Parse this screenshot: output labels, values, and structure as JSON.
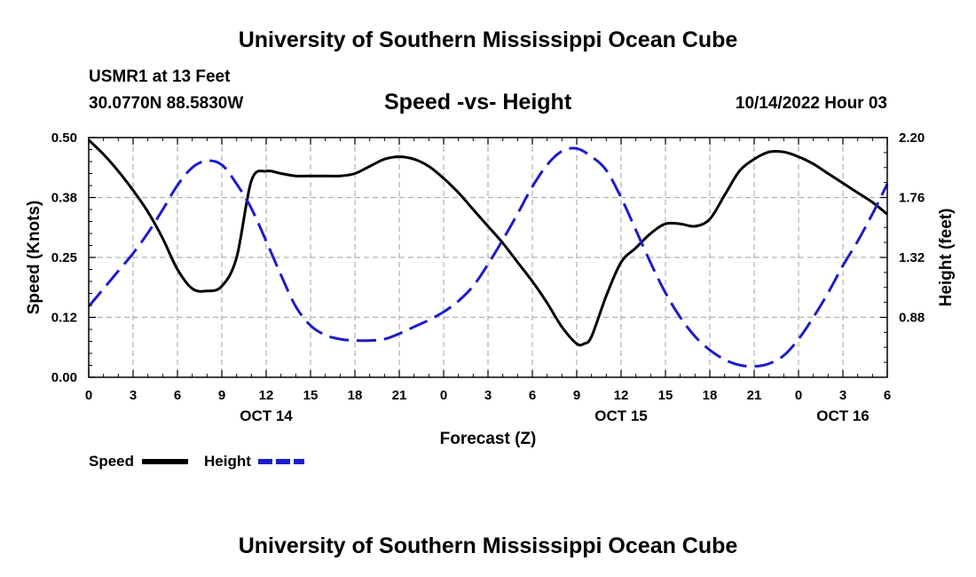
{
  "page": {
    "top_title": "University of Southern Mississippi Ocean Cube",
    "bottom_title": "University of Southern Mississippi Ocean Cube",
    "station": "USMR1 at 13 Feet",
    "coordinates": "30.0770N  88.5830W",
    "datetime": "10/14/2022 Hour 03"
  },
  "chart_data": {
    "type": "line",
    "title": "Speed -vs- Height",
    "xlabel": "Forecast (Z)",
    "ylabel": "Speed (Knots)",
    "y2label": "Height (feet)",
    "grid": true,
    "x_unit": "hours since 10/14 00Z",
    "xlim": [
      0,
      54
    ],
    "ylim": [
      0,
      0.5
    ],
    "y2lim": [
      0.44,
      2.2
    ],
    "x_ticks": [
      0,
      3,
      6,
      9,
      12,
      15,
      18,
      21,
      24,
      27,
      30,
      33,
      36,
      39,
      42,
      45,
      48,
      51,
      54
    ],
    "x_tick_labels": [
      "0",
      "3",
      "6",
      "9",
      "12",
      "15",
      "18",
      "21",
      "0",
      "3",
      "6",
      "9",
      "12",
      "15",
      "18",
      "21",
      "0",
      "3",
      "6"
    ],
    "date_labels": [
      {
        "x": 12,
        "label": "OCT 14"
      },
      {
        "x": 36,
        "label": "OCT 15"
      },
      {
        "x": 51,
        "label": "OCT 16"
      }
    ],
    "y_ticks": [
      0.0,
      0.125,
      0.25,
      0.375,
      0.5
    ],
    "y_tick_labels": [
      "0.00",
      "0.12",
      "0.25",
      "0.38",
      "0.50"
    ],
    "y2_ticks": [
      0.88,
      1.32,
      1.76,
      2.2
    ],
    "y2_tick_labels": [
      "0.88",
      "1.32",
      "1.76",
      "2.20"
    ],
    "series": [
      {
        "name": "Speed",
        "axis": "left",
        "color": "#000000",
        "dash": "solid",
        "x": [
          0,
          1,
          2,
          3,
          4,
          5,
          6,
          7,
          8,
          9,
          10,
          11,
          12,
          13,
          14,
          15,
          16,
          17,
          18,
          19,
          20,
          21,
          22,
          23,
          24,
          25,
          26,
          27,
          28,
          29,
          30,
          31,
          32,
          33,
          33.5,
          34,
          35,
          36,
          37,
          38,
          39,
          40,
          41,
          42,
          43,
          44,
          45,
          46,
          47,
          48,
          49,
          50,
          51,
          52,
          53,
          54
        ],
        "values": [
          0.495,
          0.465,
          0.43,
          0.39,
          0.345,
          0.29,
          0.225,
          0.185,
          0.18,
          0.19,
          0.25,
          0.41,
          0.43,
          0.425,
          0.42,
          0.42,
          0.42,
          0.42,
          0.425,
          0.44,
          0.455,
          0.46,
          0.455,
          0.44,
          0.415,
          0.385,
          0.35,
          0.315,
          0.28,
          0.24,
          0.2,
          0.155,
          0.105,
          0.07,
          0.07,
          0.085,
          0.17,
          0.24,
          0.27,
          0.3,
          0.32,
          0.32,
          0.315,
          0.33,
          0.38,
          0.43,
          0.455,
          0.47,
          0.47,
          0.46,
          0.445,
          0.425,
          0.405,
          0.385,
          0.365,
          0.34
        ]
      },
      {
        "name": "Height",
        "axis": "right",
        "color": "#1c1ccc",
        "dash": "dashed",
        "x": [
          0,
          1,
          2,
          3,
          4,
          5,
          6,
          7,
          8,
          9,
          10,
          11,
          12,
          13,
          14,
          15,
          16,
          17,
          18,
          19,
          20,
          21,
          22,
          23,
          24,
          25,
          26,
          27,
          28,
          29,
          30,
          31,
          32,
          33,
          34,
          35,
          36,
          37,
          38,
          39,
          40,
          41,
          42,
          43,
          44,
          45,
          46,
          47,
          48,
          49,
          50,
          51,
          52,
          53,
          54
        ],
        "values": [
          0.96,
          1.09,
          1.22,
          1.35,
          1.5,
          1.67,
          1.85,
          1.98,
          2.03,
          2.0,
          1.86,
          1.68,
          1.44,
          1.19,
          0.96,
          0.82,
          0.75,
          0.72,
          0.71,
          0.71,
          0.72,
          0.76,
          0.81,
          0.86,
          0.92,
          1.0,
          1.11,
          1.27,
          1.45,
          1.64,
          1.84,
          2.0,
          2.1,
          2.12,
          2.06,
          1.96,
          1.76,
          1.52,
          1.28,
          1.06,
          0.88,
          0.74,
          0.64,
          0.57,
          0.53,
          0.52,
          0.54,
          0.6,
          0.72,
          0.88,
          1.06,
          1.26,
          1.44,
          1.64,
          1.86
        ]
      }
    ],
    "legend": {
      "placement": "bottom-left",
      "items": [
        {
          "label": "Speed",
          "color": "#000000",
          "dash": "solid"
        },
        {
          "label": "Height",
          "color": "#1c1ccc",
          "dash": "dashed"
        }
      ]
    }
  }
}
